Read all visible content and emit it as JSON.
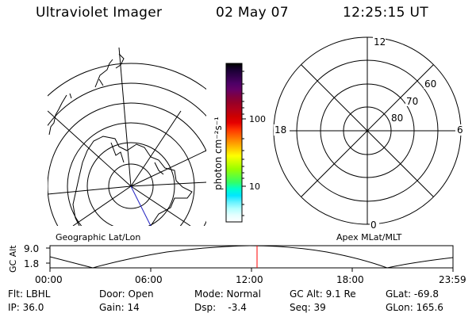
{
  "header": {
    "title": "Ultraviolet Imager",
    "date": "02 May 07",
    "time": "12:25:15 UT"
  },
  "colorbar": {
    "unit_label": "photon cm⁻²s⁻¹",
    "ticks": [
      "100",
      "10"
    ],
    "colors": [
      "#000000",
      "#1a0033",
      "#33004d",
      "#4d0066",
      "#660066",
      "#800040",
      "#990026",
      "#b3001a",
      "#cc0000",
      "#e60000",
      "#ff3300",
      "#ff6600",
      "#ff9900",
      "#ffcc00",
      "#ffff00",
      "#ccff00",
      "#99ff00",
      "#66ff33",
      "#33ff66",
      "#00ffcc",
      "#00e6ff",
      "#66f2ff",
      "#b3ffff",
      "#e6ffff",
      "#ffffff"
    ]
  },
  "geo_map": {
    "label": "Geographic Lat/Lon"
  },
  "mag_map": {
    "label": "Apex MLat/MLT",
    "mlt_labels": {
      "top": "12",
      "left": "18",
      "right": "6",
      "bottom": "0"
    },
    "lat_labels": [
      "60",
      "70",
      "80"
    ]
  },
  "altitude_plot": {
    "ylabel": "GC Alt",
    "yticks": [
      "9.0",
      "1.8"
    ],
    "xticks": [
      "00:00",
      "06:00",
      "12:00",
      "18:00",
      "23:59"
    ],
    "marker_color": "#ff0000"
  },
  "footer": {
    "filter": "Flt: LBHL",
    "door": "Door: Open",
    "mode": "Mode: Normal",
    "gc_alt": "GC Alt: 9.1 Re",
    "glat": "GLat: -69.8",
    "ip": "IP: 36.0",
    "gain": "Gain: 14",
    "dsp": "Dsp:    -3.4",
    "seq": "Seq: 39",
    "glon": "GLon: 165.6"
  }
}
